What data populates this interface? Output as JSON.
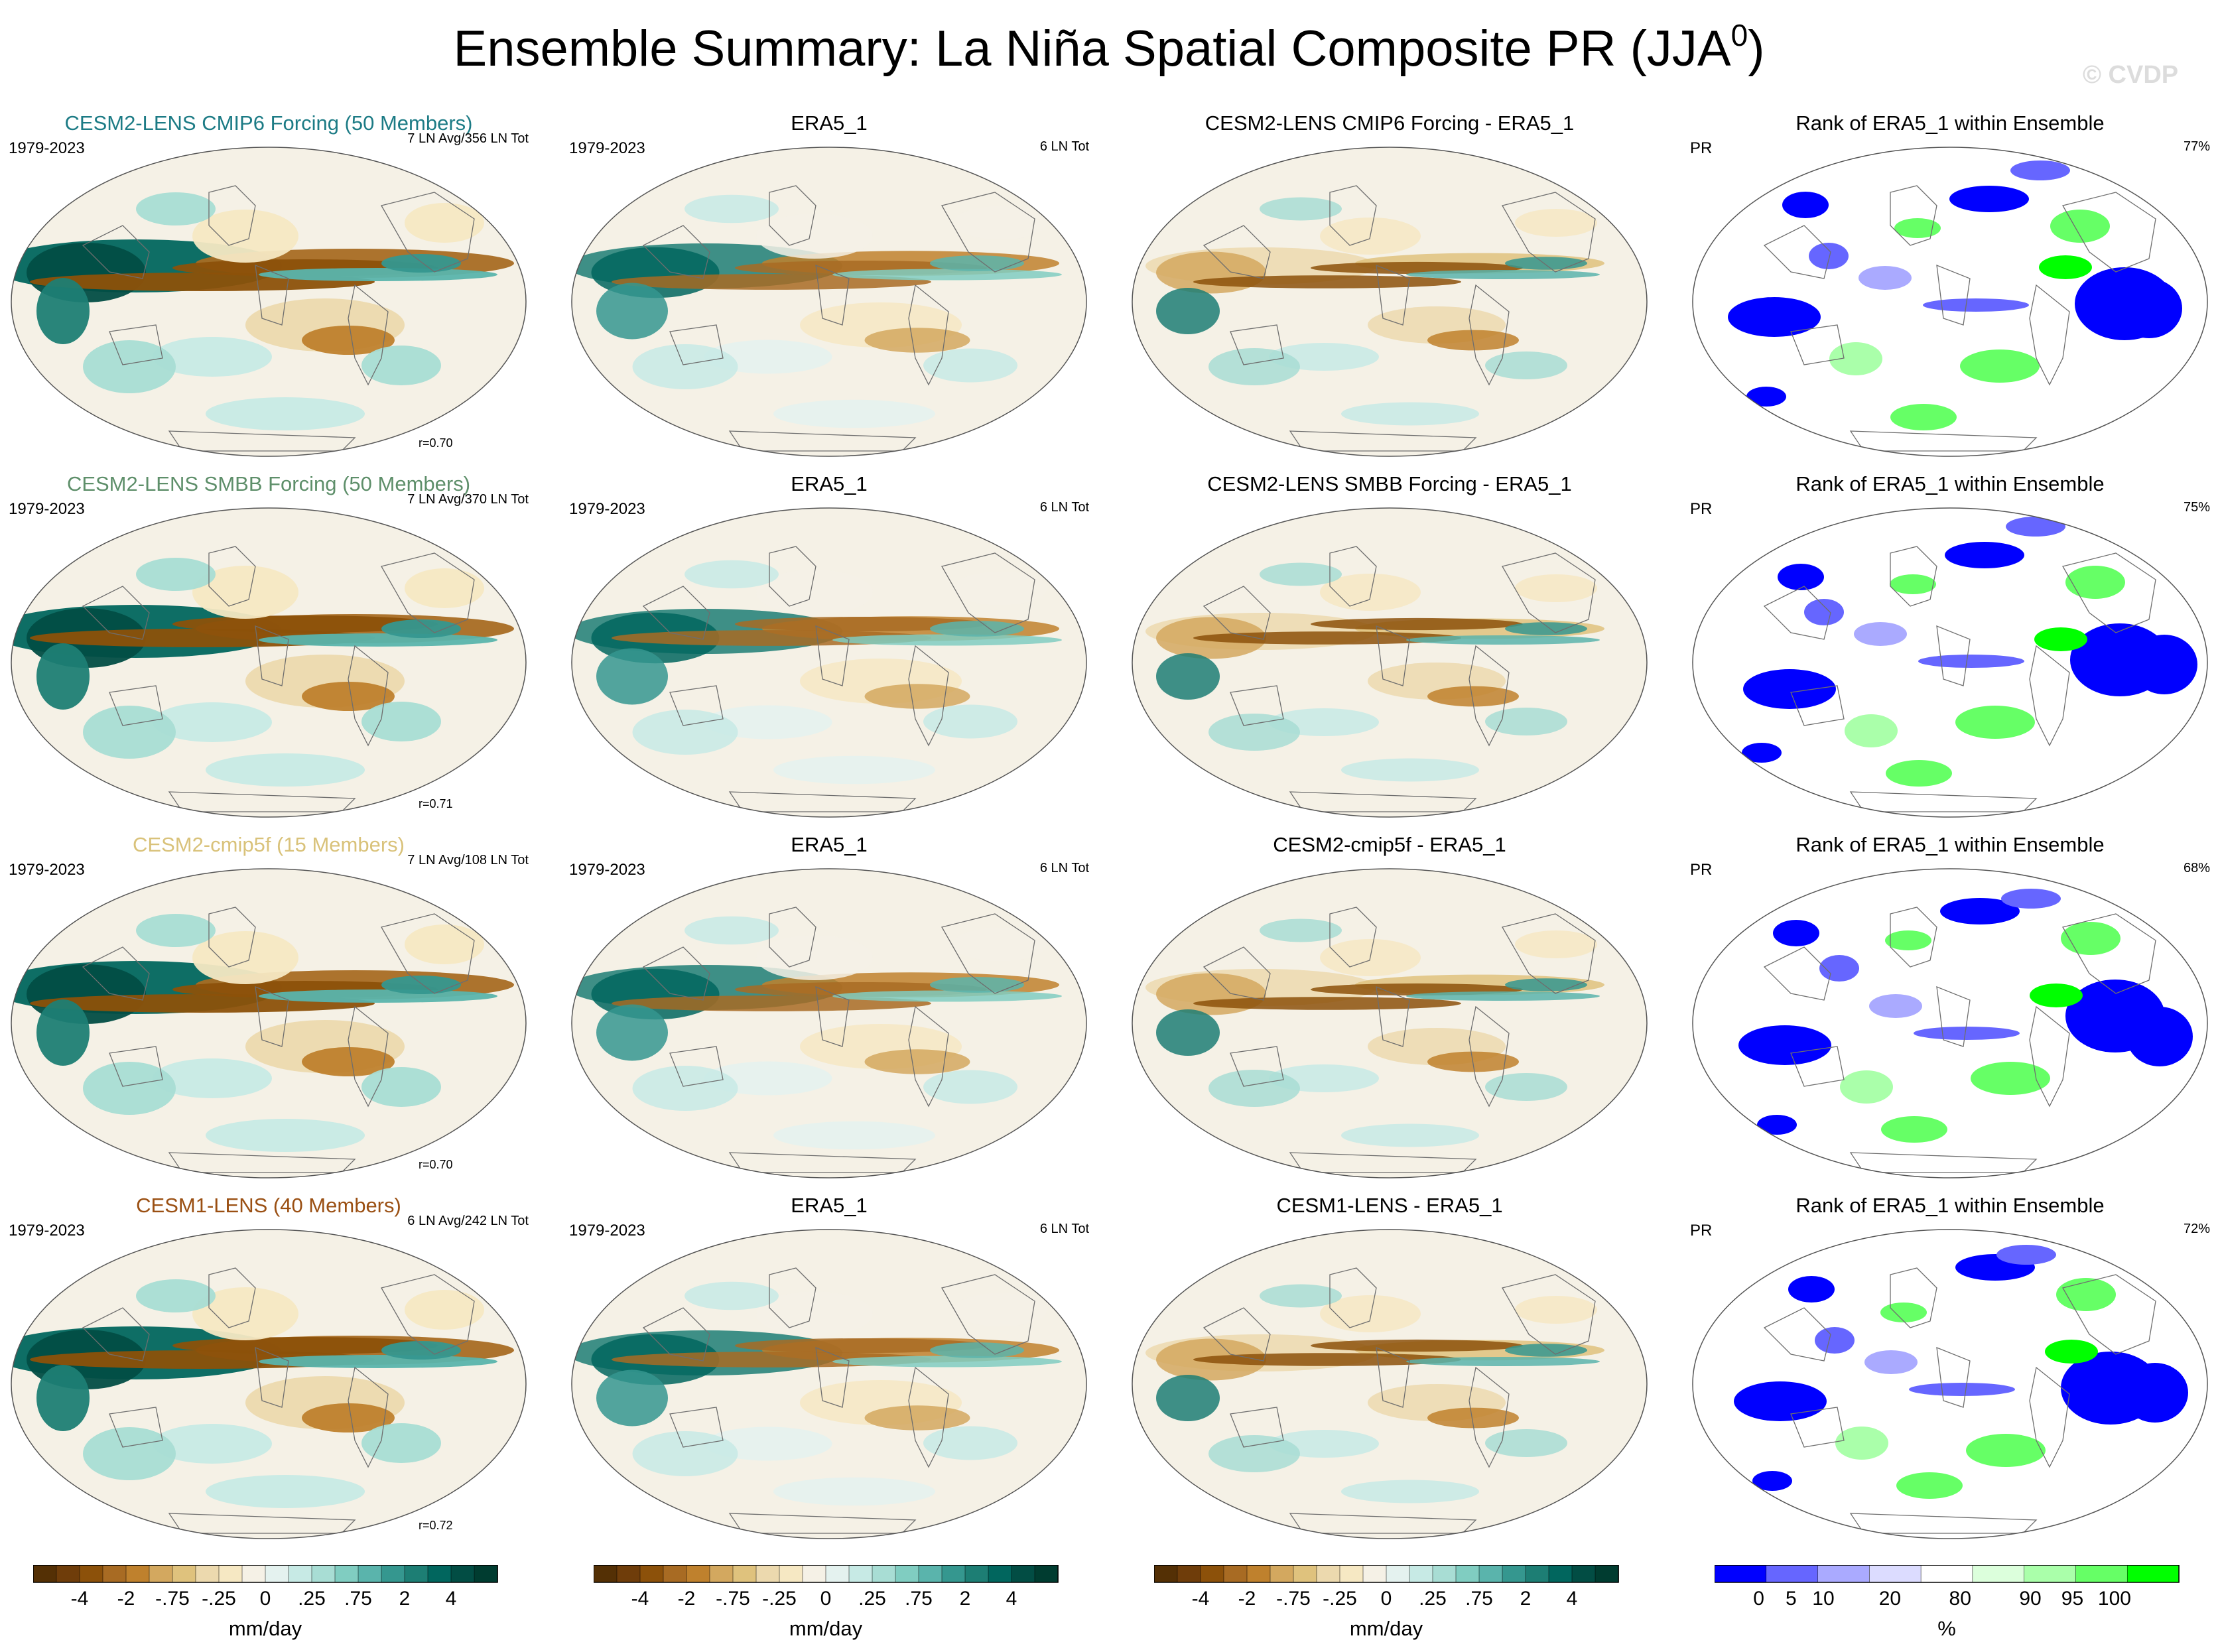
{
  "title": "Ensemble Summary: La Niña Spatial Composite PR (JJA",
  "title_sup": "0",
  "title_close": ")",
  "copyright": "© CVDP",
  "rows": [
    {
      "model": {
        "title": "CESM2-LENS CMIP6 Forcing (50 Members)",
        "color": "#1c7b85",
        "period": "1979-2023",
        "events": "7 LN Avg/356 LN Tot",
        "r": "r=0.70"
      },
      "obs": {
        "title": "ERA5_1",
        "period": "1979-2023",
        "events": "6 LN Tot"
      },
      "diff": {
        "title": "CESM2-LENS CMIP6 Forcing - ERA5_1"
      },
      "rank": {
        "title": "Rank of ERA5_1 within Ensemble",
        "var": "PR",
        "pct": "77%"
      }
    },
    {
      "model": {
        "title": "CESM2-LENS SMBB Forcing (50 Members)",
        "color": "#5e8f6a",
        "period": "1979-2023",
        "events": "7 LN Avg/370 LN Tot",
        "r": "r=0.71"
      },
      "obs": {
        "title": "ERA5_1",
        "period": "1979-2023",
        "events": "6 LN Tot"
      },
      "diff": {
        "title": "CESM2-LENS SMBB Forcing - ERA5_1"
      },
      "rank": {
        "title": "Rank of ERA5_1 within Ensemble",
        "var": "PR",
        "pct": "75%"
      }
    },
    {
      "model": {
        "title": "CESM2-cmip5f (15 Members)",
        "color": "#d9c27a",
        "period": "1979-2023",
        "events": "7 LN Avg/108 LN Tot",
        "r": "r=0.70"
      },
      "obs": {
        "title": "ERA5_1",
        "period": "1979-2023",
        "events": "6 LN Tot"
      },
      "diff": {
        "title": "CESM2-cmip5f - ERA5_1"
      },
      "rank": {
        "title": "Rank of ERA5_1 within Ensemble",
        "var": "PR",
        "pct": "68%"
      }
    },
    {
      "model": {
        "title": "CESM1-LENS (40 Members)",
        "color": "#9a4f12",
        "period": "1979-2023",
        "events": "6 LN Avg/242 LN Tot",
        "r": "r=0.72"
      },
      "obs": {
        "title": "ERA5_1",
        "period": "1979-2023",
        "events": "6 LN Tot"
      },
      "diff": {
        "title": "CESM1-LENS - ERA5_1"
      },
      "rank": {
        "title": "Rank of ERA5_1 within Ensemble",
        "var": "PR",
        "pct": "72%"
      }
    }
  ],
  "colorbars": {
    "precip": {
      "label": "mm/day",
      "ticks": [
        "-4",
        "-2",
        "-.75",
        "-.25",
        "0",
        ".25",
        ".75",
        "2",
        "4"
      ],
      "colors": [
        "#543005",
        "#6f3d0a",
        "#8c510a",
        "#a86b23",
        "#bf812d",
        "#d3a85f",
        "#dfc27d",
        "#ecd9ae",
        "#f6e8c3",
        "#f5f1e6",
        "#e4f2ef",
        "#c7eae5",
        "#a8ddd4",
        "#80cdc1",
        "#5ab4ac",
        "#35978f",
        "#1d7e74",
        "#01665e",
        "#024d44",
        "#003c30"
      ]
    },
    "rank": {
      "label": "%",
      "ticks": [
        "0",
        "5",
        "10",
        "20",
        "80",
        "90",
        "95",
        "100"
      ],
      "colors": [
        "#0000ff",
        "#6666ff",
        "#aaaaff",
        "#dcdcff",
        "#ffffff",
        "#dcffdc",
        "#aaffaa",
        "#66ff66",
        "#00ff00"
      ]
    }
  }
}
